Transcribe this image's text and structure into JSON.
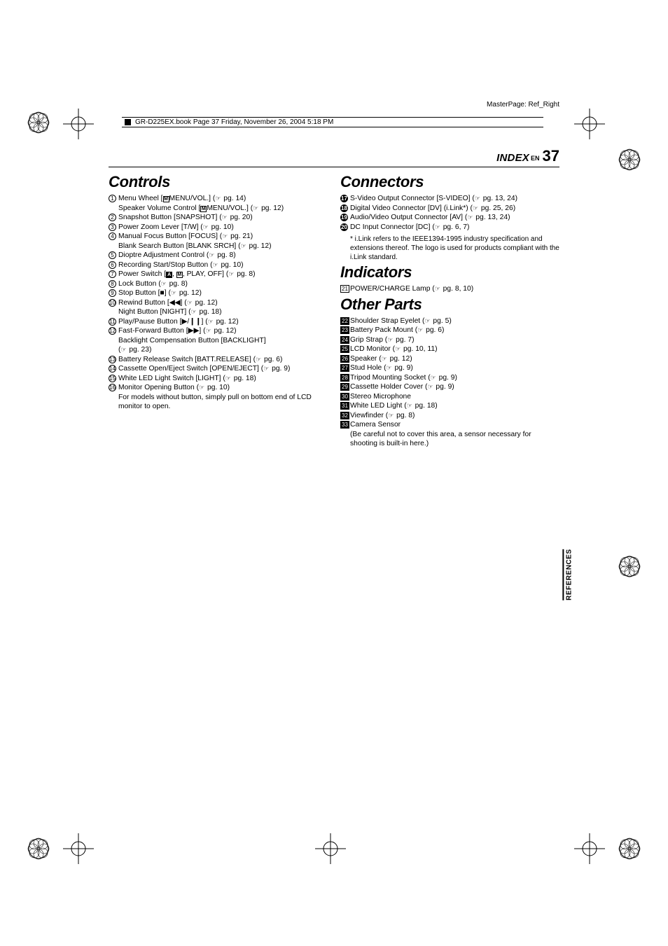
{
  "masterpage": "MasterPage: Ref_Right",
  "headerStrip": "GR-D225EX.book  Page 37  Friday, November 26, 2004  5:18 PM",
  "pageHead": {
    "index": "INDEX",
    "en": "EN",
    "page": "37"
  },
  "sideTab": "REFERENCES",
  "left": {
    "heading": "Controls",
    "items": [
      {
        "m": {
          "t": "circ",
          "n": "1"
        },
        "text": "Menu Wheel [",
        "inlineGlyph": "M",
        "text2": "MENU/VOL.] (",
        "pg": "pg. 14",
        "tail": ")"
      },
      {
        "sub": true,
        "text": "Speaker Volume Control [",
        "inlineGlyph": "M",
        "text2": "MENU/VOL.] (",
        "pg": "pg. 12",
        "tail": ")"
      },
      {
        "m": {
          "t": "circ",
          "n": "2"
        },
        "text": "Snapshot Button [SNAPSHOT] (",
        "pg": "pg. 20",
        "tail": ")"
      },
      {
        "m": {
          "t": "circ",
          "n": "3"
        },
        "text": "Power Zoom Lever [T/W] (",
        "pg": "pg. 10",
        "tail": ")"
      },
      {
        "m": {
          "t": "circ",
          "n": "4"
        },
        "text": "Manual Focus Button [FOCUS] (",
        "pg": "pg. 21",
        "tail": ")"
      },
      {
        "sub": true,
        "text": "Blank Search Button [BLANK SRCH] (",
        "pg": "pg. 12",
        "tail": ")"
      },
      {
        "m": {
          "t": "circ",
          "n": "5"
        },
        "text": "Dioptre Adjustment Control (",
        "pg": "pg. 8",
        "tail": ")"
      },
      {
        "m": {
          "t": "circ",
          "n": "6"
        },
        "text": "Recording Start/Stop Button (",
        "pg": "pg. 10",
        "tail": ")"
      },
      {
        "m": {
          "t": "circ",
          "n": "7"
        },
        "text": "Power Switch [",
        "inlineGlyphA": "A",
        "comma": ", ",
        "inlineGlyph": "M",
        "text2": ", PLAY, OFF] (",
        "pg": "pg. 8",
        "tail": ")"
      },
      {
        "m": {
          "t": "circ",
          "n": "8"
        },
        "text": "Lock Button (",
        "pg": "pg. 8",
        "tail": ")"
      },
      {
        "m": {
          "t": "circ",
          "n": "9"
        },
        "text": "Stop Button [■] (",
        "pg": "pg. 12",
        "tail": ")"
      },
      {
        "m": {
          "t": "circ",
          "n": "10"
        },
        "text": "Rewind Button [◀◀] (",
        "pg": "pg. 12",
        "tail": ")"
      },
      {
        "sub": true,
        "text": "Night Button [NIGHT] (",
        "pg": "pg. 18",
        "tail": ")"
      },
      {
        "m": {
          "t": "circ",
          "n": "11"
        },
        "text": "Play/Pause Button [▶/❙❙] (",
        "pg": "pg. 12",
        "tail": ")"
      },
      {
        "m": {
          "t": "circ",
          "n": "12"
        },
        "text": "Fast-Forward Button [▶▶] (",
        "pg": "pg. 12",
        "tail": ")"
      },
      {
        "sub": true,
        "text": "Backlight Compensation Button [BACKLIGHT]"
      },
      {
        "sub": true,
        "text": "(",
        "pg": "pg. 23",
        "tail": ")"
      },
      {
        "m": {
          "t": "circ",
          "n": "13"
        },
        "text": "Battery Release Switch [BATT.RELEASE] (",
        "pg": "pg. 6",
        "tail": ")"
      },
      {
        "m": {
          "t": "circ",
          "n": "14"
        },
        "text": "Cassette Open/Eject Switch [OPEN/EJECT] (",
        "pg": "pg. 9",
        "tail": ")"
      },
      {
        "m": {
          "t": "circ",
          "n": "15"
        },
        "text": "White LED Light Switch [LIGHT] (",
        "pg": "pg. 18",
        "tail": ")"
      },
      {
        "m": {
          "t": "circ",
          "n": "16"
        },
        "text": "Monitor Opening Button (",
        "pg": "pg. 10",
        "tail": ")"
      },
      {
        "sub": true,
        "text": "For models without button, simply pull on bottom end of LCD monitor to open."
      }
    ]
  },
  "right": [
    {
      "heading": "Connectors",
      "items": [
        {
          "m": {
            "t": "solid",
            "n": "17"
          },
          "text": "S-Video Output Connector [S-VIDEO] (",
          "pg": "pg. 13, 24",
          "tail": ")"
        },
        {
          "m": {
            "t": "solid",
            "n": "18"
          },
          "text": "Digital Video Connector [DV] (i.Link*) (",
          "pg": "pg. 25, 26",
          "tail": ")"
        },
        {
          "m": {
            "t": "solid",
            "n": "19"
          },
          "text": "Audio/Video Output Connector [AV] (",
          "pg": "pg. 13, 24",
          "tail": ")"
        },
        {
          "m": {
            "t": "solid",
            "n": "20"
          },
          "text": "DC Input Connector [DC] (",
          "pg": "pg. 6, 7",
          "tail": ")"
        }
      ],
      "footnote": "* i.Link refers to the IEEE1394-1995 industry specification and extensions thereof. The logo is used for products compliant with the i.Link standard."
    },
    {
      "heading": "Indicators",
      "items": [
        {
          "m": {
            "t": "box",
            "n": "21"
          },
          "text": "POWER/CHARGE Lamp (",
          "pg": "pg. 8, 10",
          "tail": ")"
        }
      ]
    },
    {
      "heading": "Other Parts",
      "items": [
        {
          "m": {
            "t": "boxs",
            "n": "22"
          },
          "text": "Shoulder Strap Eyelet (",
          "pg": "pg. 5",
          "tail": ")"
        },
        {
          "m": {
            "t": "boxs",
            "n": "23"
          },
          "text": "Battery Pack Mount (",
          "pg": "pg. 6",
          "tail": ")"
        },
        {
          "m": {
            "t": "boxs",
            "n": "24"
          },
          "text": "Grip Strap (",
          "pg": "pg. 7",
          "tail": ")"
        },
        {
          "m": {
            "t": "boxs",
            "n": "25"
          },
          "text": "LCD Monitor (",
          "pg": "pg. 10, 11",
          "tail": ")"
        },
        {
          "m": {
            "t": "boxs",
            "n": "26"
          },
          "text": "Speaker (",
          "pg": "pg. 12",
          "tail": ")"
        },
        {
          "m": {
            "t": "boxs",
            "n": "27"
          },
          "text": "Stud Hole (",
          "pg": "pg. 9",
          "tail": ")"
        },
        {
          "m": {
            "t": "boxs",
            "n": "28"
          },
          "text": "Tripod Mounting Socket (",
          "pg": "pg. 9",
          "tail": ")"
        },
        {
          "m": {
            "t": "boxs",
            "n": "29"
          },
          "text": "Cassette Holder Cover (",
          "pg": "pg. 9",
          "tail": ")"
        },
        {
          "m": {
            "t": "boxs",
            "n": "30"
          },
          "text": "Stereo Microphone"
        },
        {
          "m": {
            "t": "boxs",
            "n": "31"
          },
          "text": "White LED Light (",
          "pg": "pg. 18",
          "tail": ")"
        },
        {
          "m": {
            "t": "boxs",
            "n": "32"
          },
          "text": "Viewfinder (",
          "pg": "pg. 8",
          "tail": ")"
        },
        {
          "m": {
            "t": "boxs",
            "n": "33"
          },
          "text": "Camera Sensor"
        },
        {
          "sub": true,
          "text": "(Be careful not to cover this area, a sensor necessary for shooting is built-in here.)"
        }
      ]
    }
  ]
}
